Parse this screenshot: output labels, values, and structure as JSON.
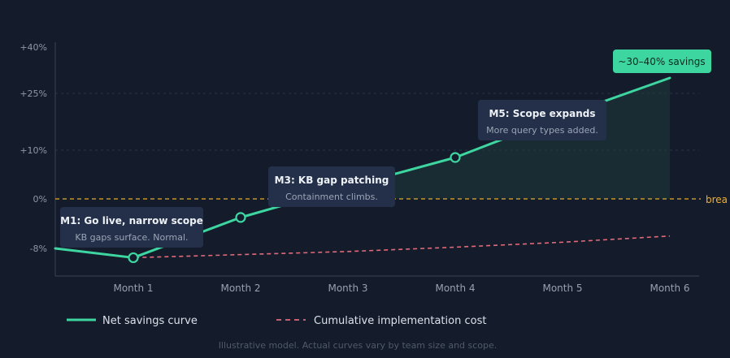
{
  "colors": {
    "background": "#141b2a",
    "savings_line": "#3ed6a0",
    "cost_line": "#e06a7a",
    "breakeven": "#e2ad2a",
    "annotation_bg": "#243049",
    "callout_bg": "#3ed6a0"
  },
  "chart_data": {
    "type": "line",
    "x": [
      "Month 1",
      "Month 2",
      "Month 3",
      "Month 4",
      "Month 5",
      "Month 6"
    ],
    "y_ticks": [
      "+40%",
      "+25%",
      "+10%",
      "0%",
      "-8%"
    ],
    "ylim": [
      -12,
      40
    ],
    "grid": true,
    "series": [
      {
        "name": "Net savings curve",
        "style": "solid",
        "color": "#3ed6a0",
        "points": [
          [
            0.2,
            -8
          ],
          [
            1,
            -9.5
          ],
          [
            2,
            -3
          ],
          [
            3,
            2.5
          ],
          [
            4,
            8.5
          ],
          [
            5,
            19
          ],
          [
            6,
            30
          ]
        ],
        "markers_at": [
          1,
          2,
          4
        ]
      },
      {
        "name": "Cumulative implementation cost",
        "style": "dashed",
        "color": "#e06a7a",
        "points": [
          [
            0.2,
            -8
          ],
          [
            1,
            -9.5
          ],
          [
            2,
            -9
          ],
          [
            3,
            -8.5
          ],
          [
            4,
            -7.8
          ],
          [
            5,
            -7
          ],
          [
            6,
            -6
          ]
        ]
      }
    ],
    "reference_line": {
      "y": 0,
      "label": "brea",
      "color": "#e2ad2a"
    },
    "annotations": [
      {
        "title": "M1: Go live, narrow scope",
        "subtitle": "KB gaps surface. Normal."
      },
      {
        "title": "M3: KB gap patching",
        "subtitle": "Containment climbs."
      },
      {
        "title": "M5: Scope expands",
        "subtitle": "More query types added."
      }
    ],
    "end_callout": "~30–40% savings",
    "legend": [
      {
        "label": "Net savings curve",
        "style": "solid",
        "color": "#3ed6a0"
      },
      {
        "label": "Cumulative implementation cost",
        "style": "dashed",
        "color": "#e06a7a"
      }
    ],
    "legend_position": "bottom-left",
    "caption": "Illustrative model. Actual curves vary by team size and scope."
  }
}
